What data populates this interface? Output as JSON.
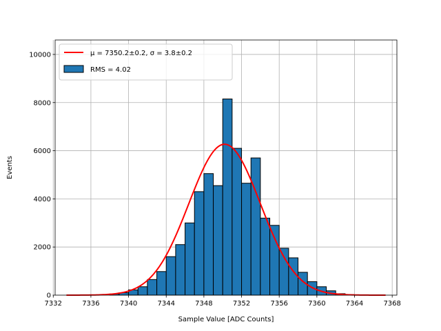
{
  "chart_data": {
    "type": "bar",
    "xlabel": "Sample Value [ADC Counts]",
    "ylabel": "Events",
    "xlim": [
      7332.2,
      7368.5
    ],
    "ylim": [
      0,
      10600
    ],
    "xticks": [
      7332,
      7336,
      7340,
      7344,
      7348,
      7352,
      7356,
      7360,
      7364,
      7368
    ],
    "yticks": [
      0,
      2000,
      4000,
      6000,
      8000,
      10000
    ],
    "grid": true,
    "legend_position": "top-left",
    "bin_width": 1,
    "bins": [
      {
        "x0": 7338,
        "value": 50
      },
      {
        "x0": 7339,
        "value": 100
      },
      {
        "x0": 7340,
        "value": 220
      },
      {
        "x0": 7341,
        "value": 350
      },
      {
        "x0": 7342,
        "value": 650
      },
      {
        "x0": 7343,
        "value": 980
      },
      {
        "x0": 7344,
        "value": 1600
      },
      {
        "x0": 7345,
        "value": 2100
      },
      {
        "x0": 7346,
        "value": 3000
      },
      {
        "x0": 7347,
        "value": 4300
      },
      {
        "x0": 7348,
        "value": 5050
      },
      {
        "x0": 7349,
        "value": 4550
      },
      {
        "x0": 7350,
        "value": 8150
      },
      {
        "x0": 7351,
        "value": 6100
      },
      {
        "x0": 7352,
        "value": 4650
      },
      {
        "x0": 7353,
        "value": 5700
      },
      {
        "x0": 7354,
        "value": 3200
      },
      {
        "x0": 7355,
        "value": 2900
      },
      {
        "x0": 7356,
        "value": 1950
      },
      {
        "x0": 7357,
        "value": 1550
      },
      {
        "x0": 7358,
        "value": 950
      },
      {
        "x0": 7359,
        "value": 560
      },
      {
        "x0": 7360,
        "value": 350
      },
      {
        "x0": 7361,
        "value": 180
      },
      {
        "x0": 7362,
        "value": 60
      },
      {
        "x0": 7363,
        "value": 20
      }
    ],
    "histogram_color": "#1f77b4",
    "fit": {
      "label": "μ = 7350.2±0.2, σ = 3.8±0.2",
      "mu": 7350.2,
      "sigma": 3.8,
      "amplitude": 6270,
      "x_range": [
        7333.4,
        7367.3
      ],
      "color": "#ff0000"
    },
    "legend": [
      {
        "label": "μ = 7350.2±0.2, σ = 3.8±0.2",
        "kind": "line",
        "color": "#ff0000"
      },
      {
        "label": "RMS = 4.02",
        "kind": "patch",
        "color": "#1f77b4"
      }
    ]
  }
}
